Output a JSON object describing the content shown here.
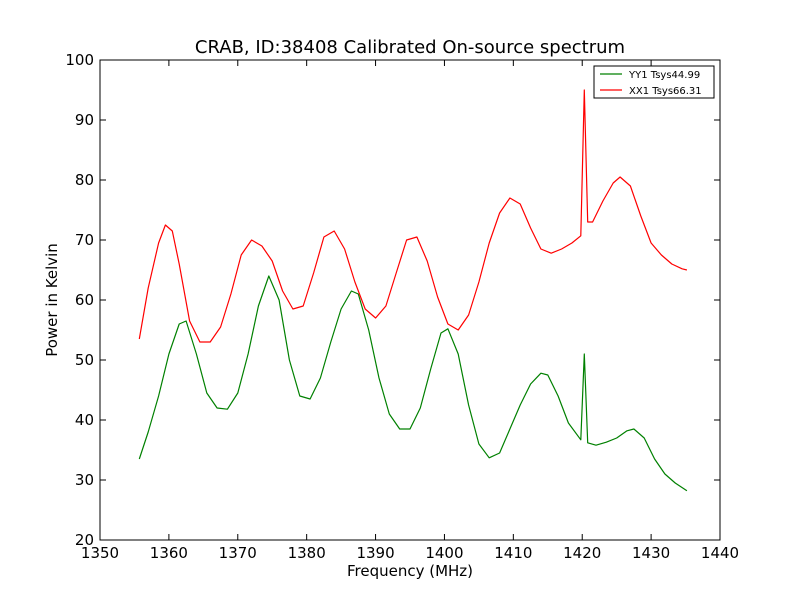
{
  "chart_data": {
    "type": "line",
    "title": "CRAB, ID:38408 Calibrated On-source spectrum",
    "xlabel": "Frequency (MHz)",
    "ylabel": "Power in Kelvin",
    "xlim": [
      1350,
      1440
    ],
    "ylim": [
      20,
      100
    ],
    "xticks": [
      1350,
      1360,
      1370,
      1380,
      1390,
      1400,
      1410,
      1420,
      1430,
      1440
    ],
    "yticks": [
      20,
      30,
      40,
      50,
      60,
      70,
      80,
      90,
      100
    ],
    "grid": false,
    "legend_position": "top-right",
    "series": [
      {
        "name": "YY1 Tsys44.99",
        "color": "#008000",
        "x": [
          1355.7,
          1357,
          1358.5,
          1360,
          1361.5,
          1362.5,
          1364,
          1365.5,
          1367,
          1368.5,
          1370,
          1371.5,
          1373,
          1374.5,
          1376,
          1377.5,
          1379,
          1380.5,
          1382,
          1383.5,
          1385,
          1386.5,
          1387.5,
          1389,
          1390.5,
          1392,
          1393.5,
          1395,
          1396.5,
          1398,
          1399.5,
          1400.5,
          1402,
          1403.5,
          1405,
          1406.5,
          1408,
          1409.5,
          1411,
          1412.5,
          1414,
          1415,
          1416.5,
          1418,
          1419.8,
          1420.3,
          1420.8,
          1422,
          1423.5,
          1425,
          1426.5,
          1427.5,
          1429,
          1430.5,
          1432,
          1433.5,
          1435.2
        ],
        "y": [
          33.5,
          38,
          44,
          51,
          56,
          56.5,
          51,
          44.5,
          42,
          41.8,
          44.5,
          51,
          59,
          64,
          60,
          50,
          44,
          43.5,
          47,
          53,
          58.5,
          61.5,
          61,
          55,
          47,
          41,
          38.5,
          38.5,
          42,
          48.5,
          54.5,
          55.2,
          51,
          42.5,
          36,
          33.7,
          34.5,
          38.5,
          42.5,
          46,
          47.8,
          47.5,
          44,
          39.5,
          36.7,
          51,
          36.2,
          35.8,
          36.3,
          37,
          38.2,
          38.5,
          37,
          33.5,
          31,
          29.5,
          28.2
        ]
      },
      {
        "name": "XX1 Tsys66.31",
        "color": "#ff0000",
        "x": [
          1355.7,
          1357,
          1358.5,
          1359.5,
          1360.5,
          1361.5,
          1363,
          1364.5,
          1366,
          1367.5,
          1369,
          1370.5,
          1372,
          1373.5,
          1375,
          1376.5,
          1378,
          1379.5,
          1381,
          1382.5,
          1384,
          1385.5,
          1387,
          1388.5,
          1390,
          1391.5,
          1393,
          1394.5,
          1396,
          1397.5,
          1399,
          1400.5,
          1402,
          1403.5,
          1405,
          1406.5,
          1408,
          1409.5,
          1411,
          1412.5,
          1414,
          1415.5,
          1417,
          1418.5,
          1419.8,
          1420.3,
          1420.8,
          1421.5,
          1423,
          1424.5,
          1425.5,
          1427,
          1428.5,
          1430,
          1431.5,
          1433,
          1434.5,
          1435.2
        ],
        "y": [
          53.5,
          62,
          69.5,
          72.5,
          71.5,
          66,
          56.5,
          53,
          53,
          55.5,
          61,
          67.5,
          70,
          69,
          66.5,
          61.5,
          58.5,
          59,
          64.5,
          70.5,
          71.5,
          68.5,
          63,
          58.5,
          57,
          59,
          64.5,
          70,
          70.5,
          66.5,
          60.5,
          56,
          55,
          57.5,
          63,
          69.5,
          74.5,
          77,
          76,
          72,
          68.5,
          67.8,
          68.5,
          69.5,
          70.7,
          95,
          73,
          73,
          76.5,
          79.5,
          80.5,
          79,
          74,
          69.5,
          67.5,
          66,
          65.2,
          65
        ]
      }
    ]
  }
}
